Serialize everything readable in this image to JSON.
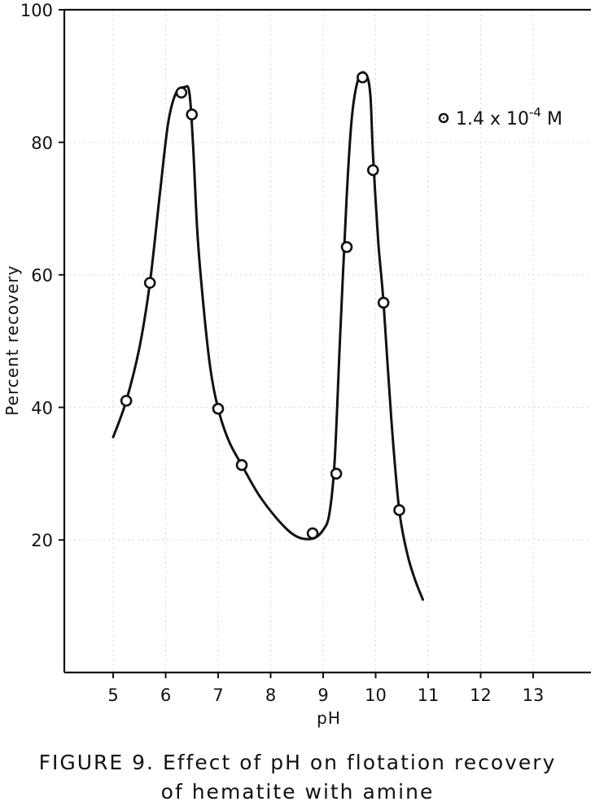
{
  "figure": {
    "caption_line1": "FIGURE 9. Effect of pH on flotation recovery",
    "caption_line2": "of hematite with amine"
  },
  "chart_data": {
    "type": "scatter",
    "xlabel": "pH",
    "ylabel": "Percent recovery",
    "xlim": [
      4,
      14
    ],
    "ylim": [
      0,
      100
    ],
    "x_ticks": [
      5,
      6,
      7,
      8,
      9,
      10,
      11,
      12,
      13
    ],
    "x_tick_labels": [
      "5",
      "6",
      "7",
      "8",
      "9",
      "10",
      "11",
      "12",
      "13"
    ],
    "y_ticks": [
      20,
      40,
      60,
      80,
      100
    ],
    "y_tick_labels": [
      "20",
      "40",
      "60",
      "80",
      "100"
    ],
    "legend_position": "top-right",
    "series": [
      {
        "name": "1.4 x 10-4 M",
        "marker": "open-circle",
        "points": [
          {
            "x": 5.25,
            "y": 41
          },
          {
            "x": 5.7,
            "y": 58.8
          },
          {
            "x": 6.3,
            "y": 87.5
          },
          {
            "x": 6.5,
            "y": 84.2
          },
          {
            "x": 7.0,
            "y": 39.8
          },
          {
            "x": 7.45,
            "y": 31.3
          },
          {
            "x": 8.8,
            "y": 21
          },
          {
            "x": 9.25,
            "y": 30
          },
          {
            "x": 9.45,
            "y": 64.2
          },
          {
            "x": 9.75,
            "y": 89.8
          },
          {
            "x": 9.95,
            "y": 75.8
          },
          {
            "x": 10.15,
            "y": 55.8
          },
          {
            "x": 10.45,
            "y": 24.5
          }
        ]
      }
    ],
    "fitted_curve": [
      [
        5.0,
        35.5
      ],
      [
        5.25,
        41
      ],
      [
        5.5,
        49
      ],
      [
        5.7,
        58.8
      ],
      [
        5.9,
        73
      ],
      [
        6.05,
        83
      ],
      [
        6.2,
        87.5
      ],
      [
        6.35,
        88.3
      ],
      [
        6.45,
        87.6
      ],
      [
        6.52,
        80
      ],
      [
        6.6,
        67
      ],
      [
        6.7,
        57
      ],
      [
        6.85,
        46
      ],
      [
        7.0,
        39.8
      ],
      [
        7.2,
        35
      ],
      [
        7.45,
        31.3
      ],
      [
        7.8,
        26.5
      ],
      [
        8.2,
        22.5
      ],
      [
        8.5,
        20.5
      ],
      [
        8.8,
        20.2
      ],
      [
        9.0,
        21.5
      ],
      [
        9.12,
        24
      ],
      [
        9.22,
        32
      ],
      [
        9.32,
        50
      ],
      [
        9.45,
        72
      ],
      [
        9.55,
        84
      ],
      [
        9.68,
        89.8
      ],
      [
        9.82,
        90.2
      ],
      [
        9.9,
        87
      ],
      [
        9.95,
        78
      ],
      [
        10.05,
        65
      ],
      [
        10.15,
        55.8
      ],
      [
        10.3,
        38
      ],
      [
        10.45,
        24.5
      ],
      [
        10.6,
        18
      ],
      [
        10.75,
        14
      ],
      [
        10.9,
        11
      ]
    ]
  }
}
